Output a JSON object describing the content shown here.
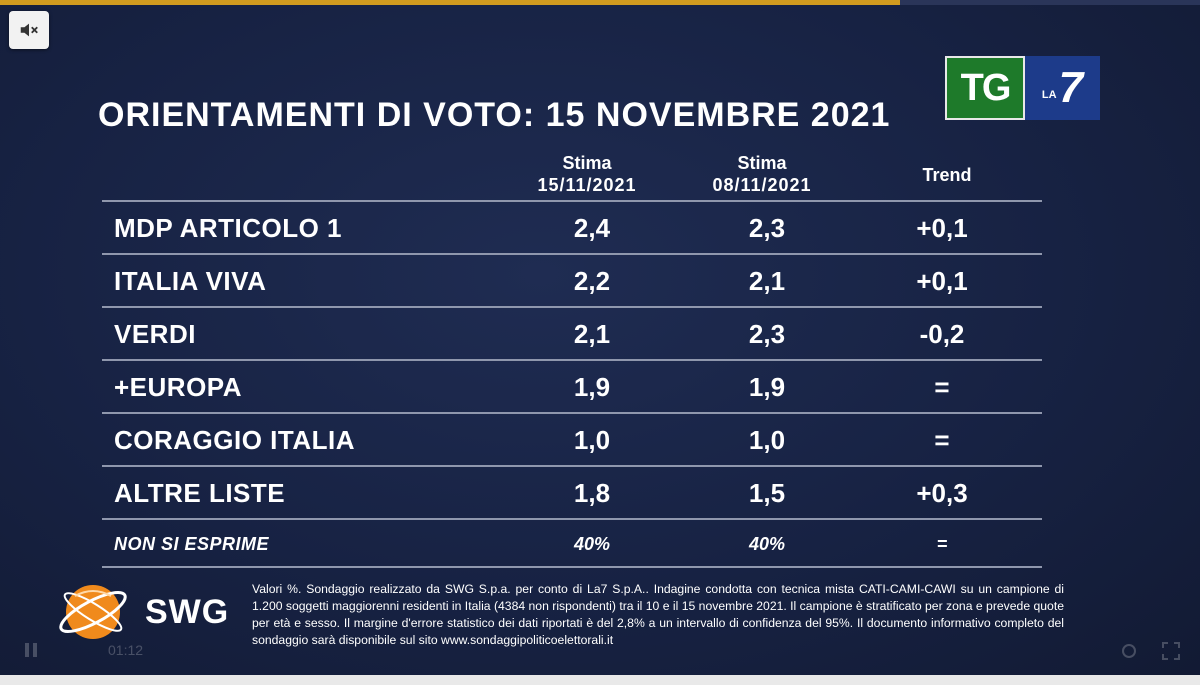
{
  "player": {
    "progress_fraction": 0.75,
    "time_label": "01:12"
  },
  "mute_icon": "muted-speaker-icon",
  "logo": {
    "tg": "TG",
    "la": "LA",
    "seven": "7"
  },
  "title": "ORIENTAMENTI DI VOTO: 15 NOVEMBRE 2021",
  "columns": {
    "col1": {
      "line1": "Stima",
      "line2": "15/11/2021"
    },
    "col2": {
      "line1": "Stima",
      "line2": "08/11/2021"
    },
    "col3": {
      "line1": "Trend"
    }
  },
  "rows": [
    {
      "party": "MDP ARTICOLO 1",
      "v1": "2,4",
      "v2": "2,3",
      "trend": "+0,1"
    },
    {
      "party": "ITALIA VIVA",
      "v1": "2,2",
      "v2": "2,1",
      "trend": "+0,1"
    },
    {
      "party": "VERDI",
      "v1": "2,1",
      "v2": "2,3",
      "trend": "-0,2"
    },
    {
      "party": "+EUROPA",
      "v1": "1,9",
      "v2": "1,9",
      "trend": "="
    },
    {
      "party": "CORAGGIO ITALIA",
      "v1": "1,0",
      "v2": "1,0",
      "trend": "="
    },
    {
      "party": "ALTRE LISTE",
      "v1": "1,8",
      "v2": "1,5",
      "trend": "+0,3"
    },
    {
      "party": "NON SI ESPRIME",
      "v1": "40%",
      "v2": "40%",
      "trend": "="
    }
  ],
  "swg": {
    "name": "SWG",
    "colors": {
      "orange": "#f08a1c",
      "white": "#ffffff"
    }
  },
  "disclaimer": "Valori %. Sondaggio realizzato da SWG S.p.a. per conto di La7 S.p.A.. Indagine condotta con tecnica mista CATI-CAMI-CAWI su un campione di 1.200 soggetti maggiorenni residenti in Italia (4384 non rispondenti) tra il 10 e il 15 novembre 2021. Il campione è stratificato per zona e prevede quote per età e sesso. Il margine d'errore statistico dei dati riportati è del 2,8% a un intervallo di confidenza del 95%. Il documento informativo completo del sondaggio sarà disponibile sul sito www.sondaggipoliticoelettorali.it",
  "colors": {
    "background": "#172243",
    "progress": "#d19b1f",
    "divider": "#8f97ad",
    "tg_green": "#1e7a2a",
    "la7_blue": "#1d3b8a"
  }
}
